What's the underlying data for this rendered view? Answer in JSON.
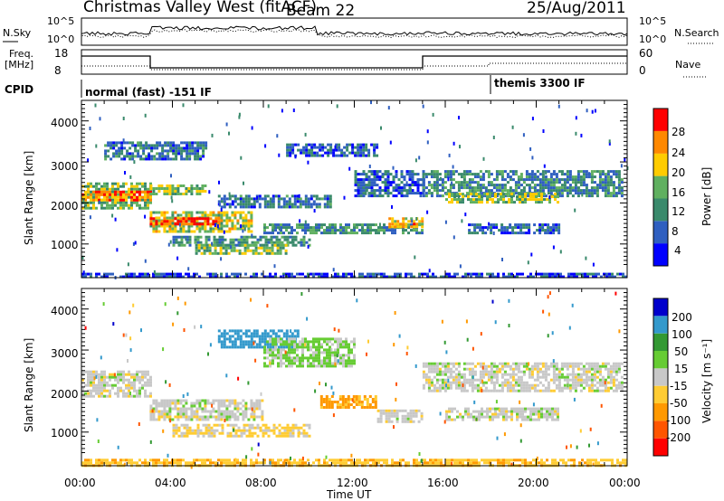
{
  "header": {
    "station": "Christmas Valley West (fitACF)",
    "beam": "Beam 22",
    "date": "25/Aug/2011"
  },
  "summary_panel": {
    "left_label": "N.Sky",
    "left_ticks": [
      "10^5",
      "10^0"
    ],
    "right_ticks": [
      "10^5",
      "10^0"
    ],
    "right_label": "N.Search"
  },
  "freq_panel": {
    "label_line1": "Freq.",
    "label_line2": "[MHz]",
    "left_ticks": [
      "18",
      "8"
    ],
    "right_ticks": [
      "60",
      "0"
    ],
    "right_label": "Nave"
  },
  "cpid": {
    "label": "CPID",
    "modes": [
      {
        "name": "normal (fast) -151 IF",
        "start_hour": 0
      },
      {
        "name": "themis 3300 IF",
        "start_hour": 18
      }
    ]
  },
  "chart_data": [
    {
      "type": "heatmap",
      "name": "power",
      "ylabel": "Slant Range [km]",
      "ylim": [
        180,
        4500
      ],
      "yticks": [
        "1000",
        "2000",
        "3000",
        "4000"
      ],
      "xlim": [
        0,
        24
      ],
      "colorbar": {
        "label": "Power [dB]",
        "ticks": [
          "28",
          "24",
          "20",
          "16",
          "12",
          "8",
          "4"
        ],
        "colors": [
          "#0000ff",
          "#2f5fc0",
          "#3a8a6c",
          "#60b060",
          "#ffcc00",
          "#ff8800",
          "#ff0000"
        ]
      },
      "bands": [
        {
          "t": [
            0.0,
            3.0
          ],
          "r": [
            1900,
            2500
          ],
          "db": 14
        },
        {
          "t": [
            0.0,
            3.0
          ],
          "r": [
            2050,
            2300
          ],
          "db": 22
        },
        {
          "t": [
            1.0,
            5.5
          ],
          "r": [
            3100,
            3500
          ],
          "db": 8
        },
        {
          "t": [
            3.0,
            7.5
          ],
          "r": [
            1300,
            1800
          ],
          "db": 16
        },
        {
          "t": [
            3.0,
            6.0
          ],
          "r": [
            1500,
            1650
          ],
          "db": 25
        },
        {
          "t": [
            3.0,
            5.5
          ],
          "r": [
            2200,
            2450
          ],
          "db": 14
        },
        {
          "t": [
            4.0,
            10.0
          ],
          "r": [
            950,
            1200
          ],
          "db": 10
        },
        {
          "t": [
            5.0,
            9.0
          ],
          "r": [
            800,
            1000
          ],
          "db": 14
        },
        {
          "t": [
            6.0,
            11.0
          ],
          "r": [
            1900,
            2200
          ],
          "db": 8
        },
        {
          "t": [
            8.0,
            15.0
          ],
          "r": [
            1300,
            1500
          ],
          "db": 10
        },
        {
          "t": [
            9.0,
            13.0
          ],
          "r": [
            3150,
            3450
          ],
          "db": 6
        },
        {
          "t": [
            12.0,
            15.0
          ],
          "r": [
            2200,
            2800
          ],
          "db": 6
        },
        {
          "t": [
            13.5,
            15.0
          ],
          "r": [
            1450,
            1650
          ],
          "db": 20
        },
        {
          "t": [
            15.0,
            23.8
          ],
          "r": [
            2200,
            2800
          ],
          "db": 9
        },
        {
          "t": [
            16.0,
            21.0
          ],
          "r": [
            2000,
            2250
          ],
          "db": 15
        },
        {
          "t": [
            17.0,
            21.0
          ],
          "r": [
            1300,
            1500
          ],
          "db": 7
        },
        {
          "t": [
            0.0,
            24.0
          ],
          "r": [
            200,
            300
          ],
          "db": 5
        }
      ]
    },
    {
      "type": "heatmap",
      "name": "velocity",
      "ylabel": "Slant Range [km]",
      "ylim": [
        180,
        4500
      ],
      "yticks": [
        "1000",
        "2000",
        "3000",
        "4000"
      ],
      "xlim": [
        0,
        24
      ],
      "xlabel": "Time UT",
      "xticks": [
        "00:00",
        "04:00",
        "08:00",
        "12:00",
        "16:00",
        "20:00",
        "00:00"
      ],
      "colorbar": {
        "label": "Velocity [m s⁻¹]",
        "ticks": [
          "200",
          "100",
          "50",
          "15",
          "-15",
          "-50",
          "-100",
          "-200"
        ],
        "colors": [
          "#ff0000",
          "#ff5500",
          "#ff9900",
          "#ffcc33",
          "#c8c8c8",
          "#66cc33",
          "#339933",
          "#3399cc",
          "#0000cc"
        ]
      },
      "bands": [
        {
          "t": [
            0.0,
            3.0
          ],
          "r": [
            1900,
            2500
          ],
          "v": 0
        },
        {
          "t": [
            3.0,
            8.0
          ],
          "r": [
            1300,
            1800
          ],
          "v": 0
        },
        {
          "t": [
            4.0,
            10.0
          ],
          "r": [
            900,
            1200
          ],
          "v": -20
        },
        {
          "t": [
            6.0,
            9.5
          ],
          "r": [
            3100,
            3500
          ],
          "v": 150
        },
        {
          "t": [
            8.0,
            12.0
          ],
          "r": [
            2600,
            3300
          ],
          "v": 20
        },
        {
          "t": [
            10.5,
            13.0
          ],
          "r": [
            1600,
            1900
          ],
          "v": -60
        },
        {
          "t": [
            13.0,
            15.0
          ],
          "r": [
            1250,
            1550
          ],
          "v": 0
        },
        {
          "t": [
            15.0,
            23.8
          ],
          "r": [
            2000,
            2700
          ],
          "v": 0
        },
        {
          "t": [
            16.0,
            21.0
          ],
          "r": [
            1300,
            1600
          ],
          "v": 0
        },
        {
          "t": [
            0.0,
            24.0
          ],
          "r": [
            200,
            350
          ],
          "v": -40
        }
      ]
    }
  ]
}
